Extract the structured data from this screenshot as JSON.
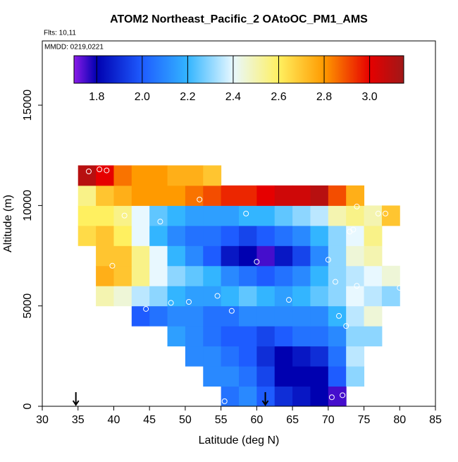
{
  "chart_data": {
    "type": "heatmap",
    "title": "ATOM2 Northeast_Pacific_2 OAtoOC_PM1_AMS",
    "subtitle": "Flts: 10,11",
    "annotation": "MMDD: 0219,0221",
    "xlabel": "Latitude (deg N)",
    "ylabel": "Altitude (m)",
    "xlim": [
      30,
      85
    ],
    "ylim": [
      0,
      18200
    ],
    "xticks": [
      30,
      35,
      40,
      45,
      50,
      55,
      60,
      65,
      70,
      75,
      80,
      85
    ],
    "yticks": [
      0,
      5000,
      10000,
      15000
    ],
    "xbins": [
      35,
      37.5,
      40,
      42.5,
      45,
      47.5,
      50,
      52.5,
      55,
      57.5,
      60,
      62.5,
      65,
      67.5,
      70,
      72.5,
      75,
      77.5,
      80
    ],
    "ybins": [
      0,
      1000,
      2000,
      3000,
      4000,
      5000,
      6000,
      7000,
      8000,
      9000,
      10000,
      11000,
      12000
    ],
    "z": [
      [
        null,
        null,
        null,
        null,
        null,
        null,
        null,
        null,
        2.05,
        2.1,
        2.0,
        1.9,
        1.85,
        1.8,
        1.75,
        null,
        null,
        null
      ],
      [
        null,
        null,
        null,
        null,
        null,
        null,
        null,
        2.1,
        2.1,
        2.05,
        1.95,
        1.8,
        1.8,
        1.8,
        2.0,
        2.3,
        null,
        null
      ],
      [
        null,
        null,
        null,
        null,
        null,
        null,
        2.1,
        2.1,
        2.05,
        2.0,
        1.9,
        1.8,
        1.85,
        1.9,
        2.05,
        2.35,
        null,
        null
      ],
      [
        null,
        null,
        null,
        null,
        null,
        2.15,
        2.1,
        2.05,
        2.0,
        2.0,
        1.95,
        2.0,
        2.05,
        2.05,
        2.1,
        2.3,
        2.3,
        null
      ],
      [
        null,
        null,
        null,
        2.0,
        2.05,
        2.1,
        2.1,
        2.05,
        2.05,
        2.1,
        2.1,
        2.1,
        2.1,
        2.1,
        2.2,
        2.35,
        2.45,
        null
      ],
      [
        null,
        2.5,
        2.45,
        2.35,
        2.3,
        2.2,
        2.15,
        2.15,
        2.2,
        2.25,
        2.2,
        2.15,
        2.2,
        2.25,
        2.3,
        2.4,
        2.35,
        2.3
      ],
      [
        null,
        2.75,
        2.7,
        2.55,
        2.4,
        2.3,
        2.25,
        2.2,
        2.1,
        2.05,
        2.0,
        2.05,
        2.1,
        2.2,
        2.3,
        2.35,
        2.4,
        2.45
      ],
      [
        null,
        2.7,
        2.7,
        2.55,
        2.4,
        2.2,
        2.1,
        2.0,
        1.85,
        1.8,
        1.75,
        1.85,
        1.95,
        2.1,
        2.3,
        2.45,
        2.5,
        null
      ],
      [
        2.65,
        2.7,
        2.6,
        2.4,
        2.2,
        2.1,
        2.05,
        2.05,
        2.0,
        1.95,
        2.0,
        2.05,
        2.1,
        2.2,
        2.3,
        2.4,
        2.55,
        null
      ],
      [
        2.6,
        2.6,
        2.55,
        2.4,
        2.25,
        2.2,
        2.15,
        2.15,
        2.15,
        2.2,
        2.2,
        2.25,
        2.3,
        2.35,
        2.5,
        2.55,
        2.5,
        2.7
      ],
      [
        2.55,
        2.7,
        2.75,
        2.8,
        2.8,
        2.8,
        2.85,
        2.9,
        2.95,
        2.95,
        3.0,
        3.05,
        3.05,
        3.1,
        2.9,
        2.75,
        null,
        null
      ],
      [
        3.1,
        3.0,
        2.85,
        2.8,
        2.8,
        2.75,
        2.75,
        2.7,
        null,
        null,
        null,
        null,
        null,
        null,
        null,
        null,
        null,
        null
      ]
    ],
    "points": {
      "x": [
        36.5,
        38,
        39,
        41.5,
        46.5,
        52,
        58.5,
        74,
        77,
        78,
        73,
        73.5,
        70,
        60,
        39.8,
        71,
        74,
        80,
        54.5,
        50.5,
        48,
        64.5,
        56.5,
        44.5,
        71.5,
        72.5,
        55.5,
        70.5,
        72
      ],
      "y": [
        11700,
        11800,
        11750,
        9500,
        9200,
        10300,
        9600,
        9950,
        9600,
        9600,
        8700,
        8800,
        7300,
        7200,
        7000,
        6200,
        6000,
        5900,
        5500,
        5200,
        5150,
        5300,
        4750,
        4850,
        4500,
        4000,
        250,
        450,
        550
      ]
    },
    "arrows": [
      34.7,
      61.2
    ],
    "colorscale": [
      [
        1.7,
        "#8a1be8"
      ],
      [
        1.8,
        "#0000b0"
      ],
      [
        2.0,
        "#1e5cff"
      ],
      [
        2.2,
        "#33b5ff"
      ],
      [
        2.4,
        "#e8f8ff"
      ],
      [
        2.6,
        "#fff060"
      ],
      [
        2.8,
        "#ff9a00"
      ],
      [
        3.0,
        "#e60000"
      ],
      [
        3.15,
        "#a01818"
      ]
    ],
    "cblim": [
      1.7,
      3.15
    ],
    "cbticks": [
      1.8,
      {
        "value": 2,
        "label": "2.0"
      },
      2.2,
      2.4,
      2.6,
      2.8,
      {
        "value": 3,
        "label": "3.0"
      }
    ]
  }
}
